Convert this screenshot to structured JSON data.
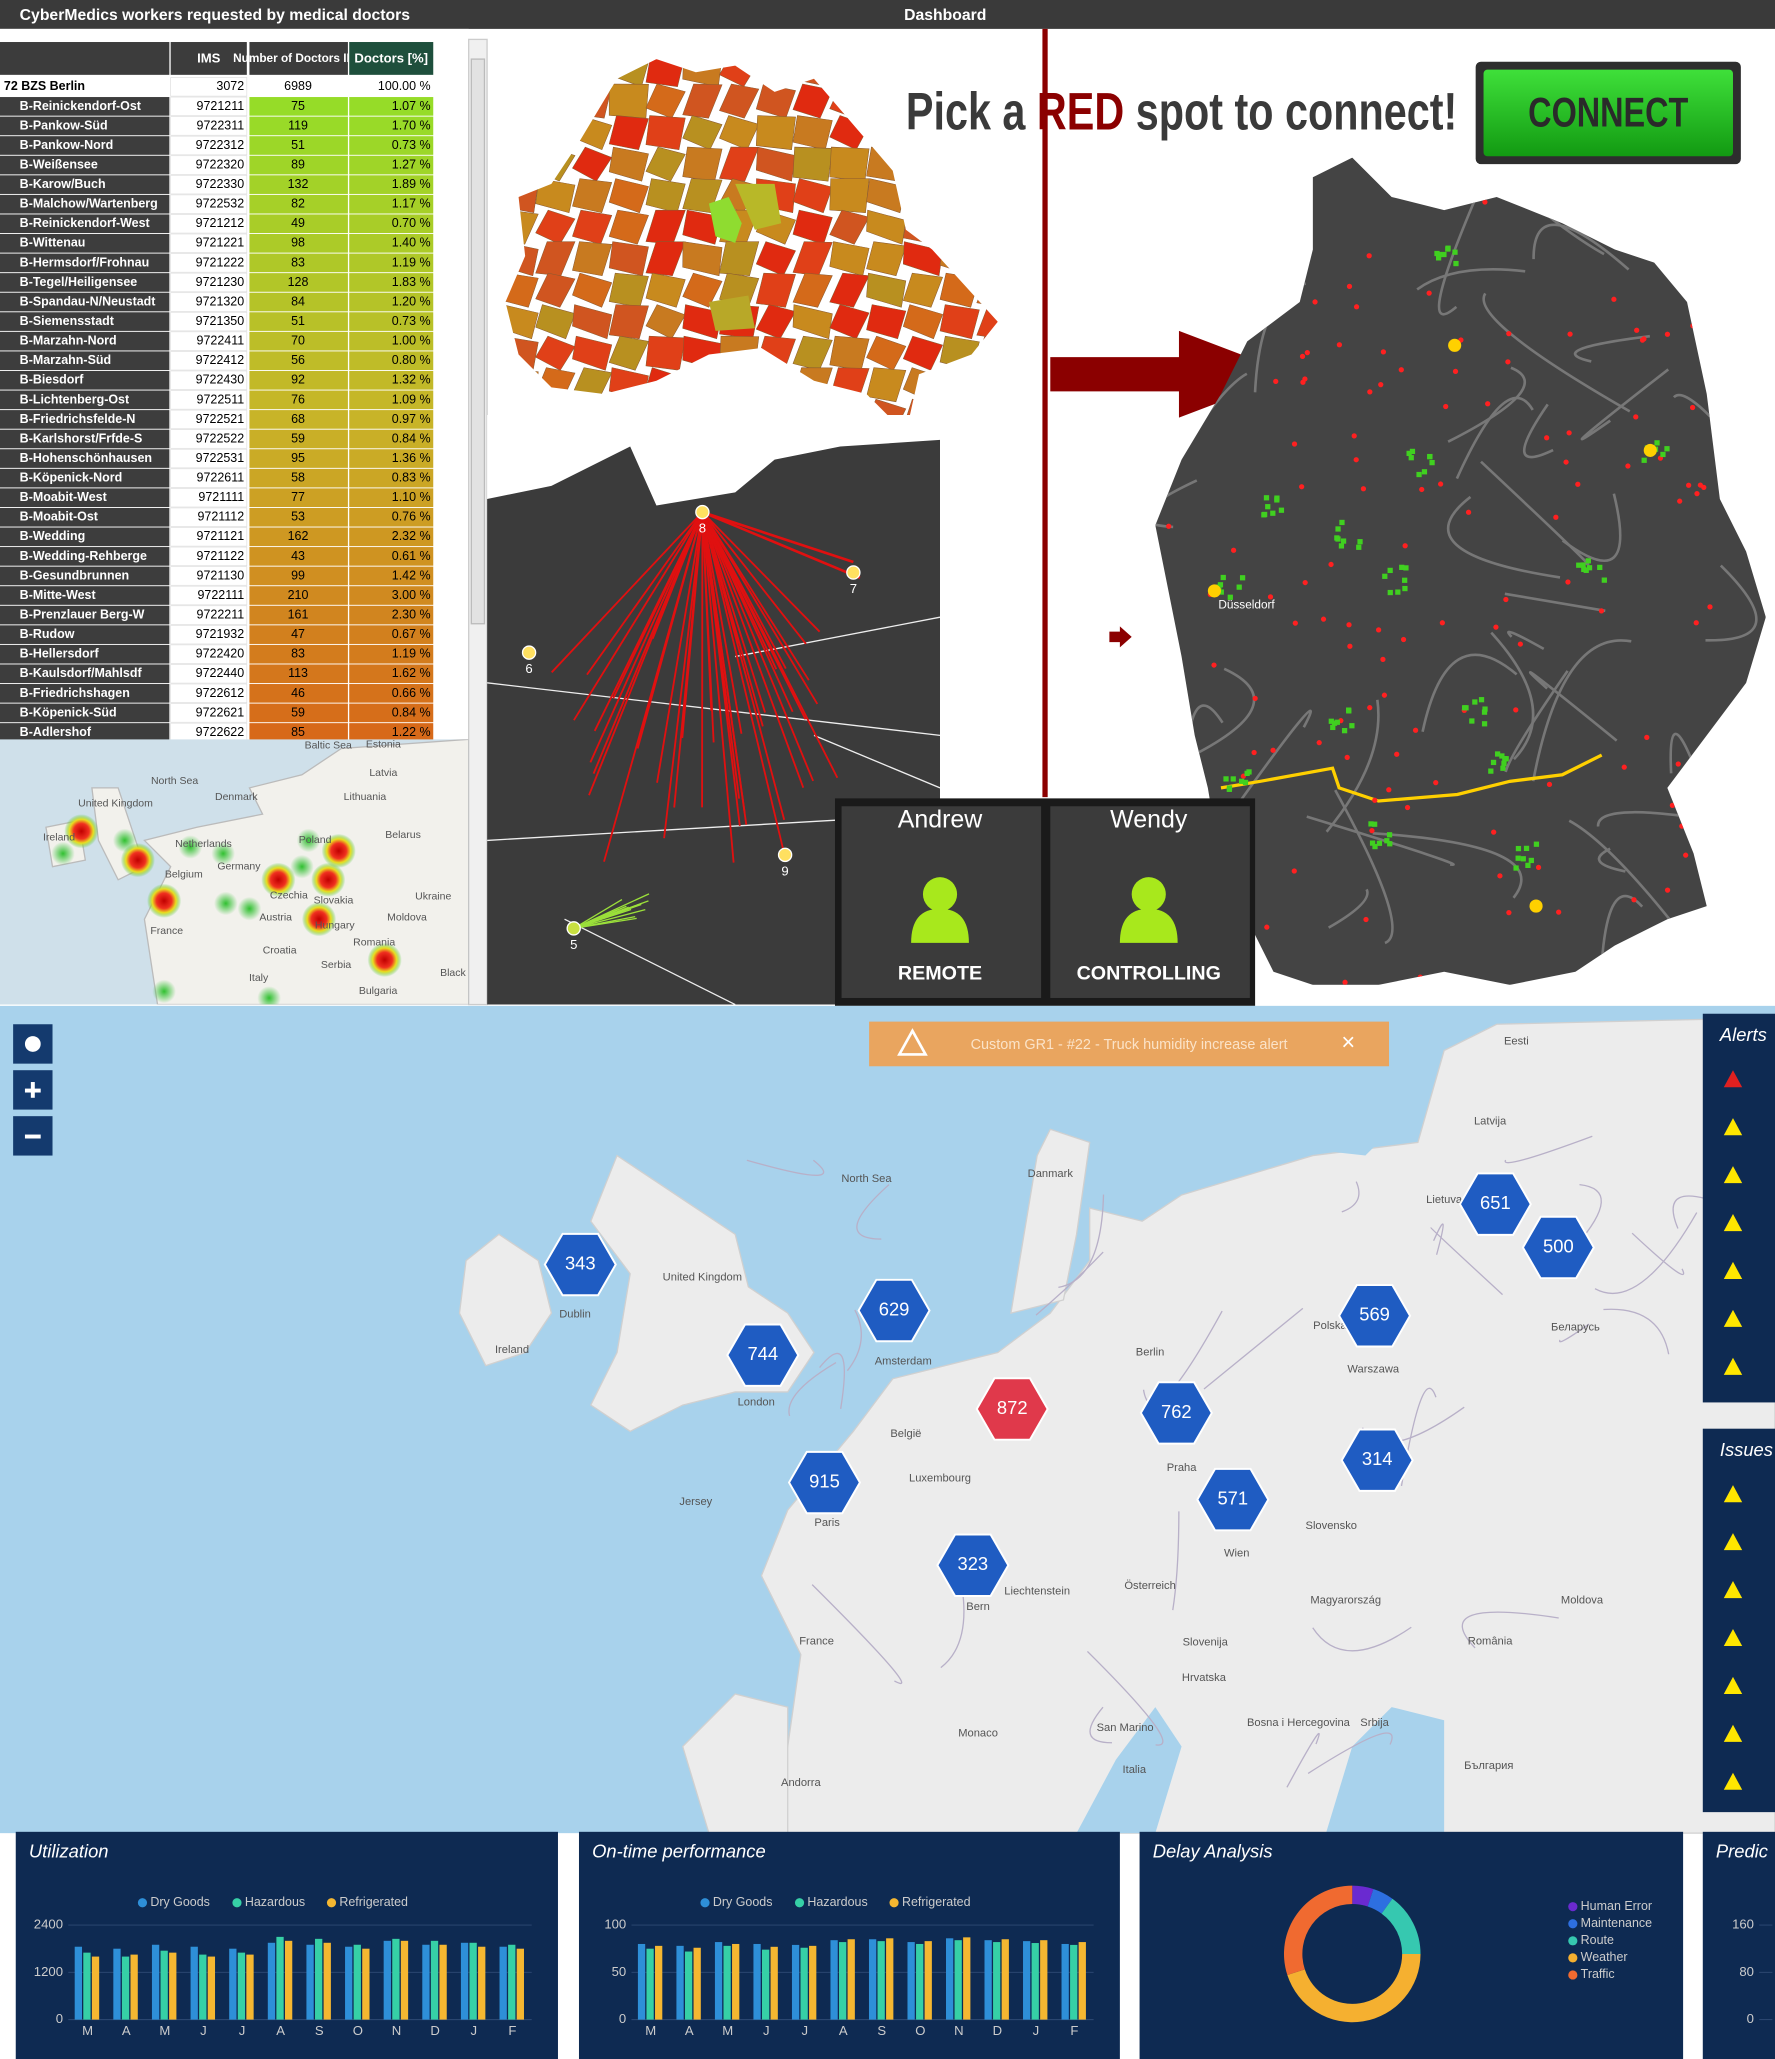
{
  "header": {
    "left_title": "CyberMedics workers requested by medical doctors",
    "center_title": "Dashboard"
  },
  "table": {
    "columns": [
      "IMS",
      "Number of Doctors IMS",
      "Doctors [%]"
    ],
    "rows": [
      [
        "72 BZS Berlin",
        3072,
        6989,
        "100.00 %"
      ],
      [
        "B-Reinickendorf-Ost",
        9721211,
        75,
        "1.07 %"
      ],
      [
        "B-Pankow-Süd",
        9722311,
        119,
        "1.70 %"
      ],
      [
        "B-Pankow-Nord",
        9722312,
        51,
        "0.73 %"
      ],
      [
        "B-Weißensee",
        9722320,
        89,
        "1.27 %"
      ],
      [
        "B-Karow/Buch",
        9722330,
        132,
        "1.89 %"
      ],
      [
        "B-Malchow/Wartenberg",
        9722532,
        82,
        "1.17 %"
      ],
      [
        "B-Reinickendorf-West",
        9721212,
        49,
        "0.70 %"
      ],
      [
        "B-Wittenau",
        9721221,
        98,
        "1.40 %"
      ],
      [
        "B-Hermsdorf/Frohnau",
        9721222,
        83,
        "1.19 %"
      ],
      [
        "B-Tegel/Heiligensee",
        9721230,
        128,
        "1.83 %"
      ],
      [
        "B-Spandau-N/Neustadt",
        9721320,
        84,
        "1.20 %"
      ],
      [
        "B-Siemensstadt",
        9721350,
        51,
        "0.73 %"
      ],
      [
        "B-Marzahn-Nord",
        9722411,
        70,
        "1.00 %"
      ],
      [
        "B-Marzahn-Süd",
        9722412,
        56,
        "0.80 %"
      ],
      [
        "B-Biesdorf",
        9722430,
        92,
        "1.32 %"
      ],
      [
        "B-Lichtenberg-Ost",
        9722511,
        76,
        "1.09 %"
      ],
      [
        "B-Friedrichsfelde-N",
        9722521,
        68,
        "0.97 %"
      ],
      [
        "B-Karlshorst/Frfde-S",
        9722522,
        59,
        "0.84 %"
      ],
      [
        "B-Hohenschönhausen",
        9722531,
        95,
        "1.36 %"
      ],
      [
        "B-Köpenick-Nord",
        9722611,
        58,
        "0.83 %"
      ],
      [
        "B-Moabit-West",
        9721111,
        77,
        "1.10 %"
      ],
      [
        "B-Moabit-Ost",
        9721112,
        53,
        "0.76 %"
      ],
      [
        "B-Wedding",
        9721121,
        162,
        "2.32 %"
      ],
      [
        "B-Wedding-Rehberge",
        9721122,
        43,
        "0.61 %"
      ],
      [
        "B-Gesundbrunnen",
        9721130,
        99,
        "1.42 %"
      ],
      [
        "B-Mitte-West",
        9722111,
        210,
        "3.00 %"
      ],
      [
        "B-Prenzlauer Berg-W",
        9722211,
        161,
        "2.30 %"
      ],
      [
        "B-Rudow",
        9721932,
        47,
        "0.67 %"
      ],
      [
        "B-Hellersdorf",
        9722420,
        83,
        "1.19 %"
      ],
      [
        "B-Kaulsdorf/Mahlsdf",
        9722440,
        113,
        "1.62 %"
      ],
      [
        "B-Friedrichshagen",
        9722612,
        46,
        "0.66 %"
      ],
      [
        "B-Köpenick-Süd",
        9722621,
        59,
        "0.84 %"
      ],
      [
        "B-Adlershof",
        9722622,
        85,
        "1.22 %"
      ]
    ]
  },
  "heatmap_labels": [
    "Baltic Sea",
    "Estonia",
    "Latvia",
    "North Sea",
    "Denmark",
    "Lithuania",
    "United Kingdom",
    "Ireland",
    "Netherlands",
    "Poland",
    "Belarus",
    "Belgium",
    "Germany",
    "Czechia",
    "Ukraine",
    "Slovakia",
    "France",
    "Austria",
    "Moldova",
    "Croatia",
    "Hungary",
    "Romania",
    "Serbia",
    "Italy",
    "Bulgaria",
    "Black"
  ],
  "route_points": [
    "8",
    "7",
    "6",
    "9",
    "5"
  ],
  "banner": {
    "parts": [
      "Pick a ",
      "RED",
      " spot to connect!"
    ],
    "button": "CONNECT"
  },
  "germany_label": "Düsseldorf",
  "users": [
    {
      "name": "Andrew",
      "role": "REMOTE"
    },
    {
      "name": "Wendy",
      "role": "CONTROLLING"
    }
  ],
  "alert_banner": "Custom GR1 - #22 - Truck humidity increase alert",
  "clusters": [
    {
      "label": "343",
      "color": "#1f5cc2"
    },
    {
      "label": "629",
      "color": "#1f5cc2"
    },
    {
      "label": "744",
      "color": "#1f5cc2"
    },
    {
      "label": "872",
      "color": "#e0394b"
    },
    {
      "label": "915",
      "color": "#1f5cc2"
    },
    {
      "label": "323",
      "color": "#1f5cc2"
    },
    {
      "label": "762",
      "color": "#1f5cc2"
    },
    {
      "label": "571",
      "color": "#1f5cc2"
    },
    {
      "label": "569",
      "color": "#1f5cc2"
    },
    {
      "label": "651",
      "color": "#1f5cc2"
    },
    {
      "label": "500",
      "color": "#1f5cc2"
    },
    {
      "label": "314",
      "color": "#1f5cc2"
    }
  ],
  "map_labels": [
    "Eesti",
    "Latvija",
    "North Sea",
    "Danmark",
    "Lietuva",
    "United Kingdom",
    "Ireland",
    "London",
    "Amsterdam",
    "Berlin",
    "Polska",
    "Warszawa",
    "Беларусь",
    "België",
    "Luxembourg",
    "Paris",
    "Praha",
    "Wien",
    "Slovensko",
    "Jersey",
    "Österreich",
    "Magyarország",
    "România",
    "France",
    "Slovenija",
    "Hrvatska",
    "Srbija",
    "Bosna i Hercegovina",
    "Monaco",
    "San Marino",
    "Italia",
    "Andorra",
    "България",
    "Moldova",
    "Bern",
    "Liechtenstein",
    "Dublin"
  ],
  "side_panels": [
    "Alerts",
    "Issues"
  ],
  "chart_data": [
    {
      "type": "bar",
      "title": "Utilization",
      "categories": [
        "M",
        "A",
        "M",
        "J",
        "J",
        "A",
        "S",
        "O",
        "N",
        "D",
        "J",
        "F"
      ],
      "series": [
        {
          "name": "Dry Goods",
          "color": "#2e8fd8",
          "values": [
            1850,
            1800,
            1900,
            1850,
            1800,
            1950,
            1900,
            1850,
            2000,
            1900,
            1950,
            1850
          ]
        },
        {
          "name": "Hazardous",
          "color": "#36d0a6",
          "values": [
            1700,
            1600,
            1750,
            1650,
            1700,
            2100,
            2050,
            1900,
            2050,
            2000,
            1950,
            1900
          ]
        },
        {
          "name": "Refrigerated",
          "color": "#f5b731",
          "values": [
            1600,
            1650,
            1700,
            1600,
            1650,
            2000,
            1950,
            1800,
            2000,
            1900,
            1850,
            1800
          ]
        }
      ],
      "ylim": [
        0,
        2400
      ],
      "yticks": [
        0,
        1200,
        2400
      ],
      "grid": true
    },
    {
      "type": "bar",
      "title": "On-time performance",
      "categories": [
        "M",
        "A",
        "M",
        "J",
        "J",
        "A",
        "S",
        "O",
        "N",
        "D",
        "J",
        "F"
      ],
      "series": [
        {
          "name": "Dry Goods",
          "color": "#2e8fd8",
          "values": [
            80,
            78,
            82,
            80,
            79,
            84,
            85,
            82,
            86,
            84,
            83,
            80
          ]
        },
        {
          "name": "Hazardous",
          "color": "#36d0a6",
          "values": [
            75,
            72,
            78,
            74,
            76,
            82,
            83,
            80,
            84,
            82,
            81,
            79
          ]
        },
        {
          "name": "Refrigerated",
          "color": "#f5b731",
          "values": [
            78,
            76,
            80,
            77,
            78,
            85,
            86,
            83,
            87,
            85,
            84,
            82
          ]
        }
      ],
      "ylim": [
        0,
        100
      ],
      "yticks": [
        0,
        50,
        100
      ],
      "grid": true
    },
    {
      "type": "donut",
      "title": "Delay Analysis",
      "categories": [
        "Human Error",
        "Maintenance",
        "Route",
        "Weather",
        "Traffic"
      ],
      "values": [
        5,
        5,
        15,
        45,
        30
      ],
      "colors": [
        "#6a2ad0",
        "#2d6fe0",
        "#36c8b0",
        "#f5b030",
        "#f06a30"
      ]
    },
    {
      "type": "bar",
      "title": "Predic",
      "ylim": [
        0,
        160
      ],
      "yticks": [
        0,
        80,
        160
      ],
      "grid": true
    }
  ]
}
